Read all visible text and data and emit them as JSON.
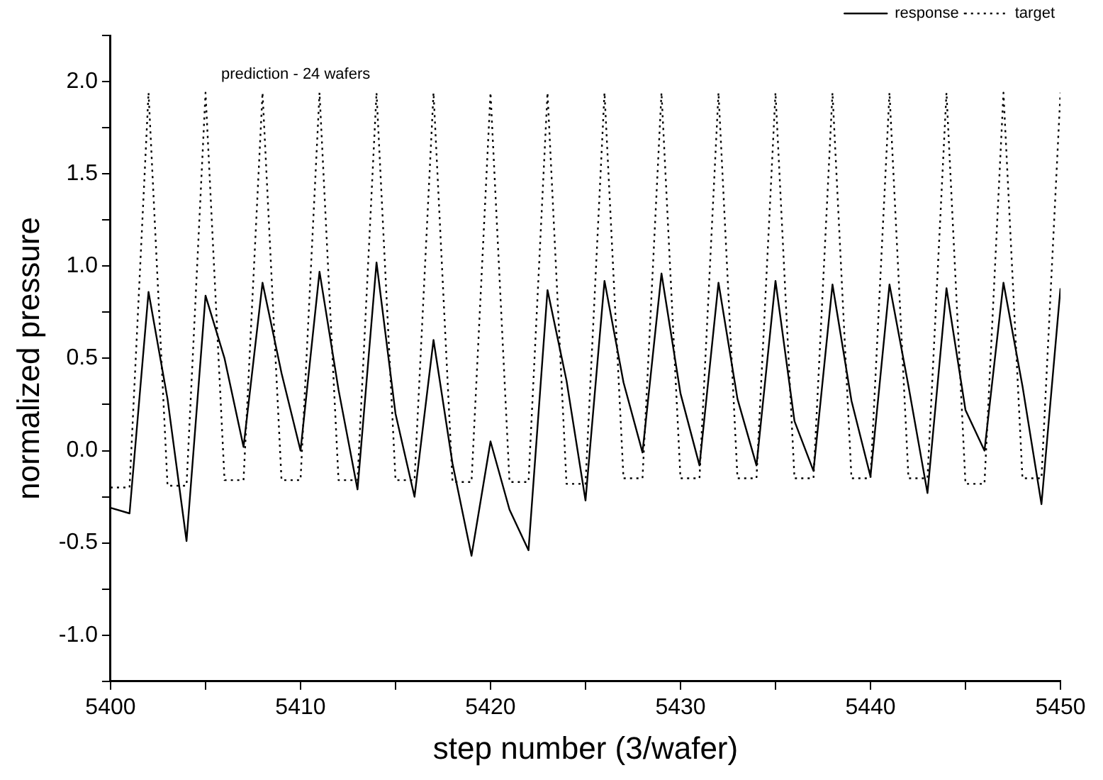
{
  "chart_data": {
    "type": "line",
    "xlabel": "step number (3/wafer)",
    "ylabel": "normalized pressure",
    "annotations": [
      "prediction - 24 wafers"
    ],
    "x": [
      5400,
      5401,
      5402,
      5403,
      5404,
      5405,
      5406,
      5407,
      5408,
      5409,
      5410,
      5411,
      5412,
      5413,
      5414,
      5415,
      5416,
      5417,
      5418,
      5419,
      5420,
      5421,
      5422,
      5423,
      5424,
      5425,
      5426,
      5427,
      5428,
      5429,
      5430,
      5431,
      5432,
      5433,
      5434,
      5435,
      5436,
      5437,
      5438,
      5439,
      5440,
      5441,
      5442,
      5443,
      5444,
      5445,
      5446,
      5447,
      5448,
      5449,
      5450
    ],
    "series": [
      {
        "name": "response",
        "color": "#000000",
        "line_style": "solid",
        "values": [
          -0.31,
          -0.34,
          0.86,
          0.28,
          -0.49,
          0.84,
          0.5,
          0.02,
          0.91,
          0.42,
          0.0,
          0.97,
          0.33,
          -0.21,
          1.02,
          0.2,
          -0.25,
          0.6,
          -0.07,
          -0.57,
          0.05,
          -0.32,
          -0.54,
          0.87,
          0.38,
          -0.27,
          0.92,
          0.37,
          -0.01,
          0.96,
          0.31,
          -0.08,
          0.91,
          0.28,
          -0.08,
          0.92,
          0.16,
          -0.11,
          0.9,
          0.27,
          -0.14,
          0.9,
          0.35,
          -0.23,
          0.88,
          0.22,
          0.0,
          0.91,
          0.35,
          -0.29,
          0.88
        ]
      },
      {
        "name": "target",
        "color": "#000000",
        "line_style": "dotted",
        "values": [
          -0.2,
          -0.2,
          1.94,
          -0.19,
          -0.19,
          1.94,
          -0.16,
          -0.16,
          1.94,
          -0.16,
          -0.16,
          1.94,
          -0.16,
          -0.16,
          1.94,
          -0.16,
          -0.16,
          1.94,
          -0.17,
          -0.17,
          1.94,
          -0.17,
          -0.17,
          1.94,
          -0.18,
          -0.18,
          1.94,
          -0.15,
          -0.15,
          1.94,
          -0.15,
          -0.15,
          1.94,
          -0.15,
          -0.15,
          1.94,
          -0.15,
          -0.15,
          1.94,
          -0.15,
          -0.15,
          1.94,
          -0.15,
          -0.15,
          1.94,
          -0.18,
          -0.18,
          1.94,
          -0.15,
          -0.15,
          1.94
        ]
      }
    ],
    "xlim": [
      5400,
      5450
    ],
    "xticks": [
      5400,
      {
        "value": 5405,
        "label": null
      },
      5410,
      {
        "value": 5415,
        "label": null
      },
      5420,
      {
        "value": 5425,
        "label": null
      },
      5430,
      {
        "value": 5435,
        "label": null
      },
      5440,
      {
        "value": 5445,
        "label": null
      },
      5450
    ],
    "ylim": [
      -1.25,
      2.25
    ],
    "yticks": [
      {
        "value": -1.25,
        "label": null
      },
      {
        "value": -1.0,
        "label": "-1.0"
      },
      {
        "value": -0.75,
        "label": null
      },
      {
        "value": -0.5,
        "label": "-0.5"
      },
      {
        "value": -0.25,
        "label": null
      },
      {
        "value": 0,
        "label": "0.0"
      },
      {
        "value": 0.25,
        "label": null
      },
      {
        "value": 0.5,
        "label": "0.5"
      },
      {
        "value": 0.75,
        "label": null
      },
      {
        "value": 1.0,
        "label": "1.0"
      },
      {
        "value": 1.25,
        "label": null
      },
      {
        "value": 1.5,
        "label": "1.5"
      },
      {
        "value": 1.75,
        "label": null
      },
      {
        "value": 2.0,
        "label": "2.0"
      },
      {
        "value": 2.25,
        "label": null
      }
    ],
    "grid": false,
    "legend": "top right",
    "marker": "none"
  }
}
